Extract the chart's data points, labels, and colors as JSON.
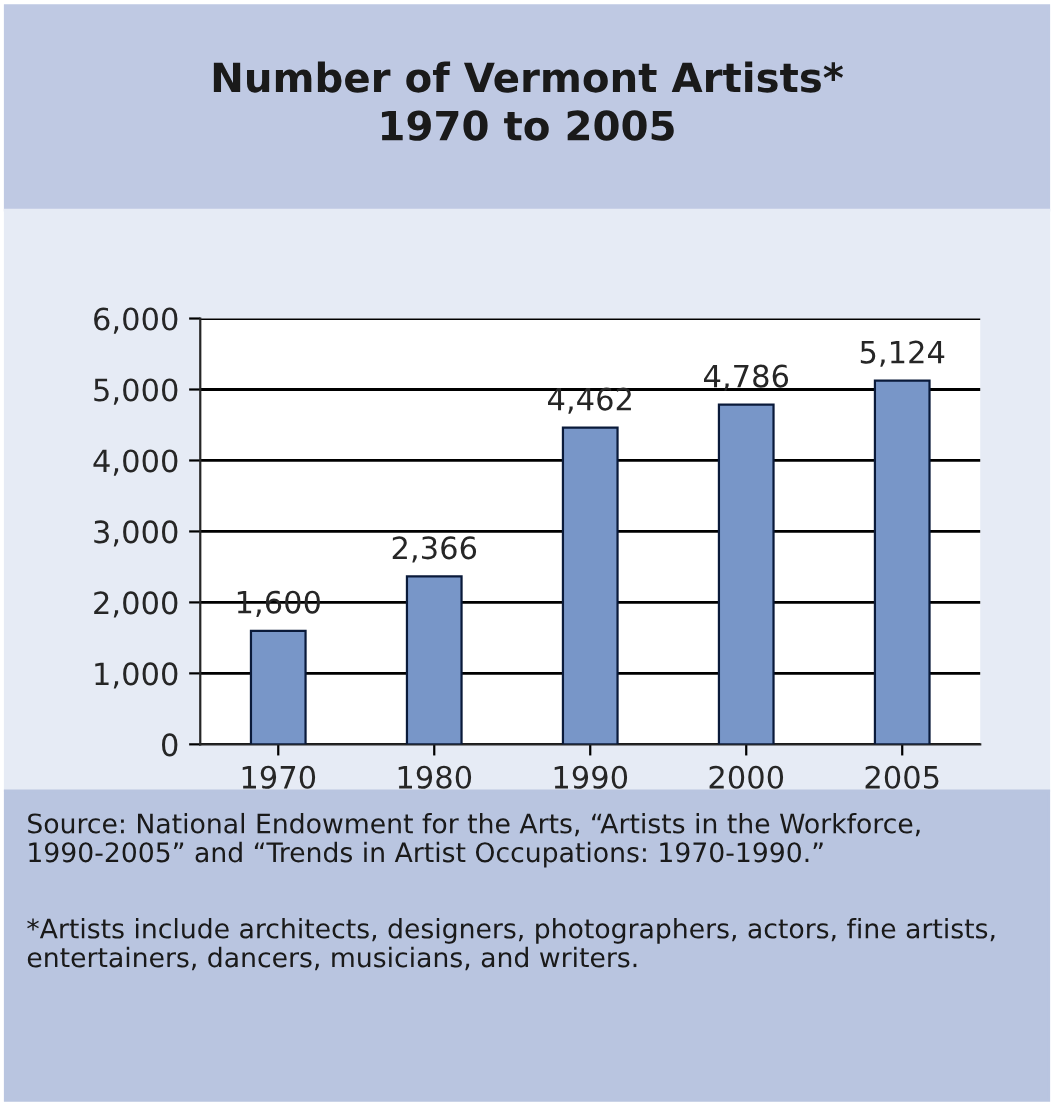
{
  "chart_data": {
    "type": "bar",
    "title": "Number of Vermont Artists*\n1970 to 2005",
    "categories": [
      "1970",
      "1980",
      "1990",
      "2000",
      "2005"
    ],
    "values": [
      1600,
      2366,
      4462,
      4786,
      5124
    ],
    "color": "#7896c8",
    "ylim": [
      0,
      6000
    ],
    "yticks": [
      0,
      {
        "value": 1000,
        "label": "1,000"
      },
      {
        "value": 2000,
        "label": "2,000"
      },
      {
        "value": 3000,
        "label": "3,000"
      },
      {
        "value": 4000,
        "label": "4,000"
      },
      {
        "value": 5000,
        "label": "5,000"
      },
      {
        "value": 6000,
        "label": "6,000"
      }
    ],
    "grid": "y",
    "data_labels": true,
    "value_labels": [
      "1,600",
      "2,366",
      "4,462",
      "4,786",
      "5,124"
    ],
    "annotations": [
      "Source: National Endowment for the Arts, “Artists in the Workforce, 1990-2005” and “Trends in Artist Occupations: 1970-1990.”",
      "*Artists include architects, designers, photographers, actors, fine artists, entertainers, dancers, musicians, and writers."
    ]
  }
}
